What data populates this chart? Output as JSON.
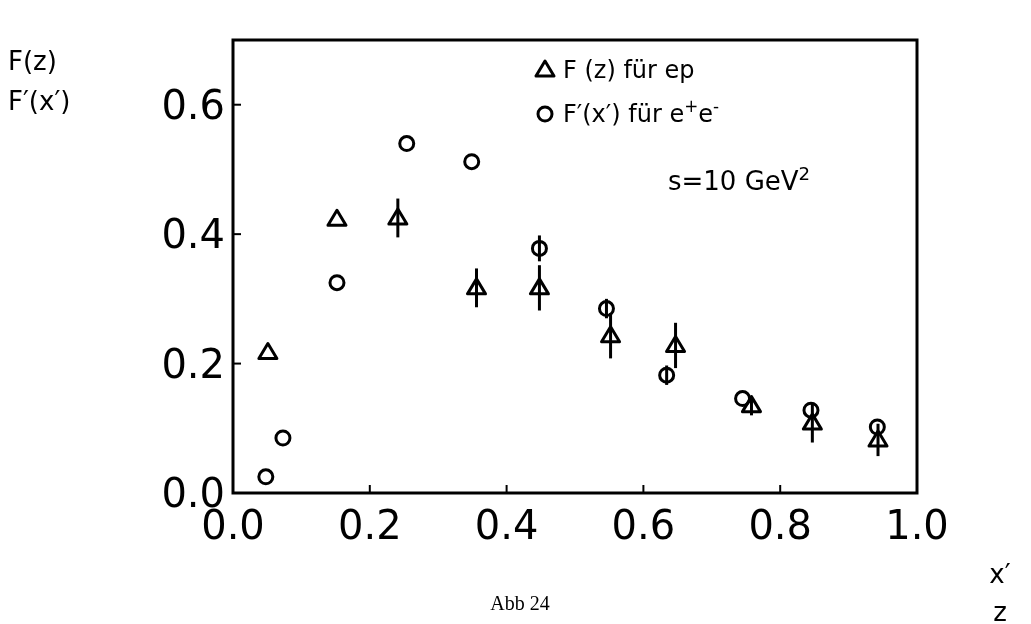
{
  "chart_data": {
    "type": "scatter",
    "xlabel": "x′\nz",
    "ylabel": "F(z)\nF′(x′)",
    "xlim": [
      0,
      1
    ],
    "ylim": [
      0,
      0.7
    ],
    "xticks": [
      {
        "value": 0,
        "label": "0.0"
      },
      0.2,
      0.4,
      0.6,
      0.8,
      {
        "value": 1,
        "label": "1.0"
      }
    ],
    "yticks": [
      {
        "value": 0,
        "label": "0.0"
      },
      0.2,
      0.4,
      0.6
    ],
    "legend": "top right",
    "grid": false,
    "series": [
      {
        "name": "F (z) für ep",
        "color": "#000000",
        "marker": "triangle",
        "x": [
          0.051,
          0.152,
          0.241,
          0.356,
          0.448,
          0.552,
          0.647,
          0.758,
          0.847,
          0.943
        ],
        "values": [
          0.217,
          0.423,
          0.425,
          0.317,
          0.317,
          0.243,
          0.228,
          0.135,
          0.108,
          0.082
        ],
        "errors": [
          null,
          null,
          0.03,
          0.03,
          0.035,
          0.035,
          0.035,
          0.015,
          0.03,
          0.025
        ]
      },
      {
        "name": "F′(x′) für e$^{+}$e$^{-}$",
        "color": "#000000",
        "marker": "circle",
        "x": [
          0.048,
          0.073,
          0.152,
          0.254,
          0.349,
          0.448,
          0.546,
          0.634,
          0.745,
          0.845,
          0.942
        ],
        "values": [
          0.025,
          0.085,
          0.325,
          0.54,
          0.512,
          0.378,
          0.285,
          0.182,
          0.146,
          0.128,
          0.102
        ],
        "errors": [
          null,
          null,
          null,
          null,
          null,
          0.02,
          0.015,
          0.015,
          null,
          null,
          null
        ]
      }
    ],
    "annotations": [
      "s=10 GeV$^{2}$",
      "Abb 24"
    ]
  }
}
